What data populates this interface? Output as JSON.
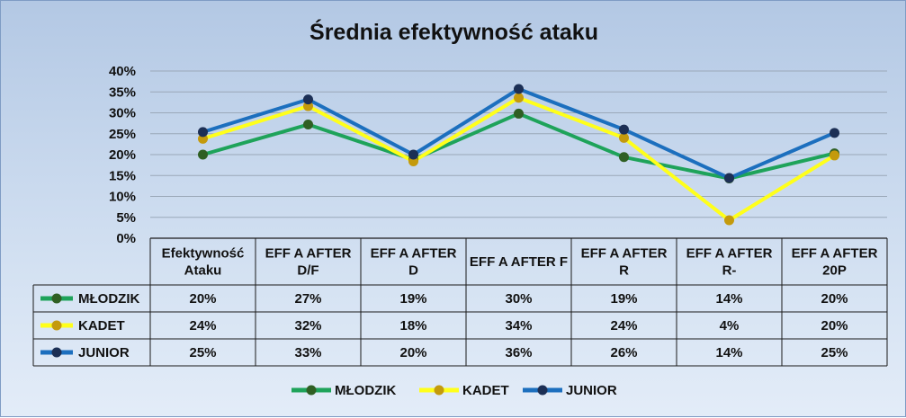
{
  "chart_data": {
    "type": "line",
    "title": "Średnia efektywność ataku",
    "categories": [
      [
        "Efektywność",
        "Ataku"
      ],
      [
        "EFF A AFTER",
        "D/F"
      ],
      [
        "EFF A AFTER",
        "D"
      ],
      [
        "EFF A AFTER F"
      ],
      [
        "EFF A AFTER",
        "R"
      ],
      [
        "EFF A AFTER",
        "R-"
      ],
      [
        "EFF A AFTER",
        "20P"
      ]
    ],
    "ylim": [
      0,
      40
    ],
    "yticks": [
      "0%",
      "5%",
      "10%",
      "15%",
      "20%",
      "25%",
      "30%",
      "35%",
      "40%"
    ],
    "grid": true,
    "legend_position": "bottom",
    "series": [
      {
        "name": "MŁODZIK",
        "color": "#1ea35a",
        "marker_color": "#2f5f23",
        "values": [
          20.0,
          27.2,
          18.8,
          29.8,
          19.4,
          14.3,
          20.3
        ],
        "labels": [
          "20%",
          "27%",
          "19%",
          "30%",
          "19%",
          "14%",
          "20%"
        ]
      },
      {
        "name": "KADET",
        "color": "#ffff1a",
        "marker_color": "#c49a0c",
        "values": [
          23.8,
          31.6,
          18.4,
          33.6,
          24.0,
          4.3,
          19.8
        ],
        "labels": [
          "24%",
          "32%",
          "18%",
          "34%",
          "24%",
          "4%",
          "20%"
        ]
      },
      {
        "name": "JUNIOR",
        "color": "#1c6fbe",
        "marker_color": "#1c2f55",
        "values": [
          25.4,
          33.2,
          20.0,
          35.7,
          26.0,
          14.4,
          25.2
        ],
        "labels": [
          "25%",
          "33%",
          "20%",
          "36%",
          "26%",
          "14%",
          "25%"
        ]
      }
    ]
  }
}
